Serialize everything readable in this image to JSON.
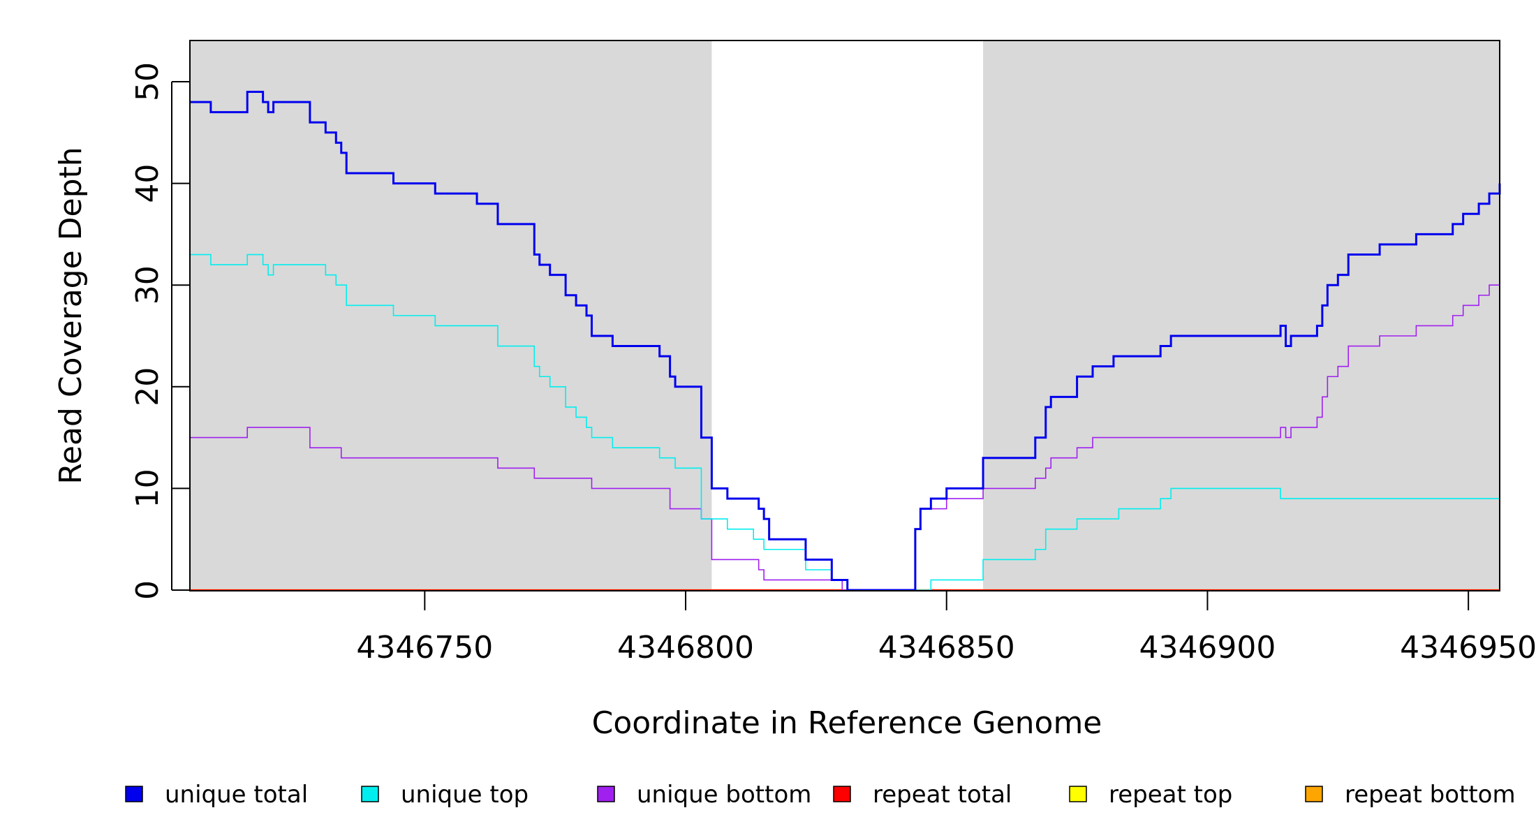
{
  "chart_data": {
    "type": "line",
    "title": "",
    "xlabel": "Coordinate in Reference Genome",
    "ylabel": "Read Coverage Depth",
    "xlim": [
      4346705,
      4346956
    ],
    "ylim": [
      0,
      54
    ],
    "x_ticks": [
      4346750,
      4346800,
      4346850,
      4346900,
      4346950
    ],
    "x_tick_labels": [
      "4346750",
      "4346800",
      "4346850",
      "4346900",
      "4346950"
    ],
    "y_ticks": [
      0,
      10,
      20,
      30,
      40,
      50
    ],
    "y_tick_labels": [
      "0",
      "10",
      "20",
      "30",
      "40",
      "50"
    ],
    "grid": false,
    "step": true,
    "shaded_regions": [
      {
        "x_start": 4346705,
        "x_end": 4346805,
        "color": "#d9d9d9"
      },
      {
        "x_start": 4346857,
        "x_end": 4346956,
        "color": "#d9d9d9"
      }
    ],
    "legend_position": "bottom",
    "series": [
      {
        "name": "unique total",
        "color": "#0000ee",
        "stroke_width": 3,
        "x": [
          4346705,
          4346709,
          4346716,
          4346719,
          4346720,
          4346721,
          4346728,
          4346731,
          4346733,
          4346734,
          4346735,
          4346744,
          4346752,
          4346760,
          4346764,
          4346771,
          4346772,
          4346774,
          4346777,
          4346779,
          4346781,
          4346782,
          4346786,
          4346795,
          4346797,
          4346798,
          4346803,
          4346805,
          4346808,
          4346814,
          4346815,
          4346816,
          4346823,
          4346828,
          4346831,
          4346844,
          4346845,
          4346847,
          4346850,
          4346857,
          4346867,
          4346869,
          4346870,
          4346871,
          4346875,
          4346878,
          4346882,
          4346891,
          4346893,
          4346914,
          4346915,
          4346916,
          4346921,
          4346922,
          4346923,
          4346925,
          4346927,
          4346933,
          4346940,
          4346947,
          4346949,
          4346952,
          4346954,
          4346956
        ],
        "y": [
          48,
          47,
          49,
          48,
          47,
          48,
          46,
          45,
          44,
          43,
          41,
          40,
          39,
          38,
          36,
          33,
          32,
          31,
          29,
          28,
          27,
          25,
          24,
          23,
          21,
          20,
          15,
          10,
          9,
          8,
          7,
          5,
          3,
          1,
          0,
          6,
          8,
          9,
          10,
          13,
          15,
          18,
          19,
          19,
          21,
          22,
          23,
          24,
          25,
          26,
          24,
          25,
          26,
          28,
          30,
          31,
          33,
          34,
          35,
          36,
          37,
          38,
          39,
          40
        ]
      },
      {
        "name": "unique top",
        "color": "#00eeee",
        "stroke_width": 1.6,
        "x": [
          4346705,
          4346709,
          4346716,
          4346719,
          4346720,
          4346721,
          4346731,
          4346733,
          4346735,
          4346744,
          4346752,
          4346764,
          4346771,
          4346772,
          4346774,
          4346777,
          4346779,
          4346781,
          4346782,
          4346786,
          4346795,
          4346798,
          4346803,
          4346805,
          4346808,
          4346813,
          4346815,
          4346823,
          4346828,
          4346831,
          4346847,
          4346857,
          4346867,
          4346869,
          4346875,
          4346883,
          4346891,
          4346893,
          4346914,
          4346956
        ],
        "y": [
          33,
          32,
          33,
          32,
          31,
          32,
          31,
          30,
          28,
          27,
          26,
          24,
          22,
          21,
          20,
          18,
          17,
          16,
          15,
          14,
          13,
          12,
          7,
          7,
          6,
          5,
          4,
          2,
          1,
          0,
          1,
          3,
          4,
          6,
          7,
          8,
          9,
          10,
          9,
          9
        ]
      },
      {
        "name": "unique bottom",
        "color": "#a020f0",
        "stroke_width": 1.6,
        "x": [
          4346705,
          4346716,
          4346728,
          4346734,
          4346764,
          4346771,
          4346782,
          4346797,
          4346803,
          4346805,
          4346814,
          4346815,
          4346830,
          4346844,
          4346845,
          4346846,
          4346850,
          4346857,
          4346867,
          4346869,
          4346870,
          4346871,
          4346875,
          4346877,
          4346878,
          4346882,
          4346914,
          4346915,
          4346916,
          4346921,
          4346922,
          4346923,
          4346925,
          4346927,
          4346933,
          4346940,
          4346947,
          4346949,
          4346952,
          4346954,
          4346956
        ],
        "y": [
          15,
          16,
          14,
          13,
          12,
          11,
          10,
          8,
          7,
          3,
          2,
          1,
          0,
          6,
          8,
          8,
          9,
          10,
          11,
          12,
          13,
          13,
          14,
          14,
          15,
          15,
          16,
          15,
          16,
          17,
          19,
          21,
          22,
          24,
          25,
          26,
          27,
          28,
          29,
          30,
          31
        ]
      },
      {
        "name": "repeat total",
        "color": "#ff0000",
        "stroke_width": 2,
        "x": [
          4346705,
          4346956
        ],
        "y": [
          0,
          0
        ]
      },
      {
        "name": "repeat top",
        "color": "#ffff00",
        "stroke_width": 2,
        "x": [
          4346705,
          4346956
        ],
        "y": [
          0,
          0
        ]
      },
      {
        "name": "repeat bottom",
        "color": "#ffa500",
        "stroke_width": 2.4,
        "x": [
          4346705,
          4346956
        ],
        "y": [
          0,
          0
        ]
      }
    ]
  }
}
